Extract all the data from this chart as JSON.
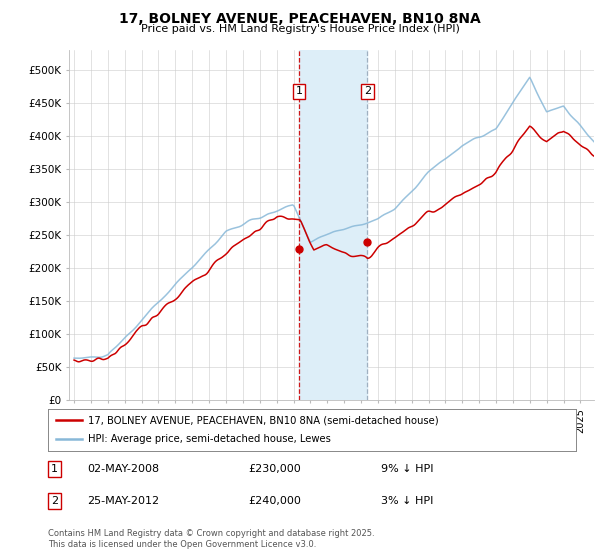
{
  "title": "17, BOLNEY AVENUE, PEACEHAVEN, BN10 8NA",
  "subtitle": "Price paid vs. HM Land Registry's House Price Index (HPI)",
  "ylabel_ticks": [
    "£0",
    "£50K",
    "£100K",
    "£150K",
    "£200K",
    "£250K",
    "£300K",
    "£350K",
    "£400K",
    "£450K",
    "£500K"
  ],
  "ytick_values": [
    0,
    50000,
    100000,
    150000,
    200000,
    250000,
    300000,
    350000,
    400000,
    450000,
    500000
  ],
  "ylim": [
    0,
    530000
  ],
  "transaction1": {
    "label": "1",
    "date": "02-MAY-2008",
    "price": 230000,
    "note": "9% ↓ HPI",
    "year": 2008.33
  },
  "transaction2": {
    "label": "2",
    "date": "25-MAY-2012",
    "price": 240000,
    "note": "3% ↓ HPI",
    "year": 2012.38
  },
  "legend_line1": "17, BOLNEY AVENUE, PEACEHAVEN, BN10 8NA (semi-detached house)",
  "legend_line2": "HPI: Average price, semi-detached house, Lewes",
  "footer": "Contains HM Land Registry data © Crown copyright and database right 2025.\nThis data is licensed under the Open Government Licence v3.0.",
  "line_color_red": "#cc0000",
  "line_color_blue": "#88b8d8",
  "highlight_color": "#ddeef8",
  "background_color": "#ffffff",
  "grid_color": "#cccccc",
  "vline1_color": "#cc0000",
  "vline2_color": "#99aabb"
}
